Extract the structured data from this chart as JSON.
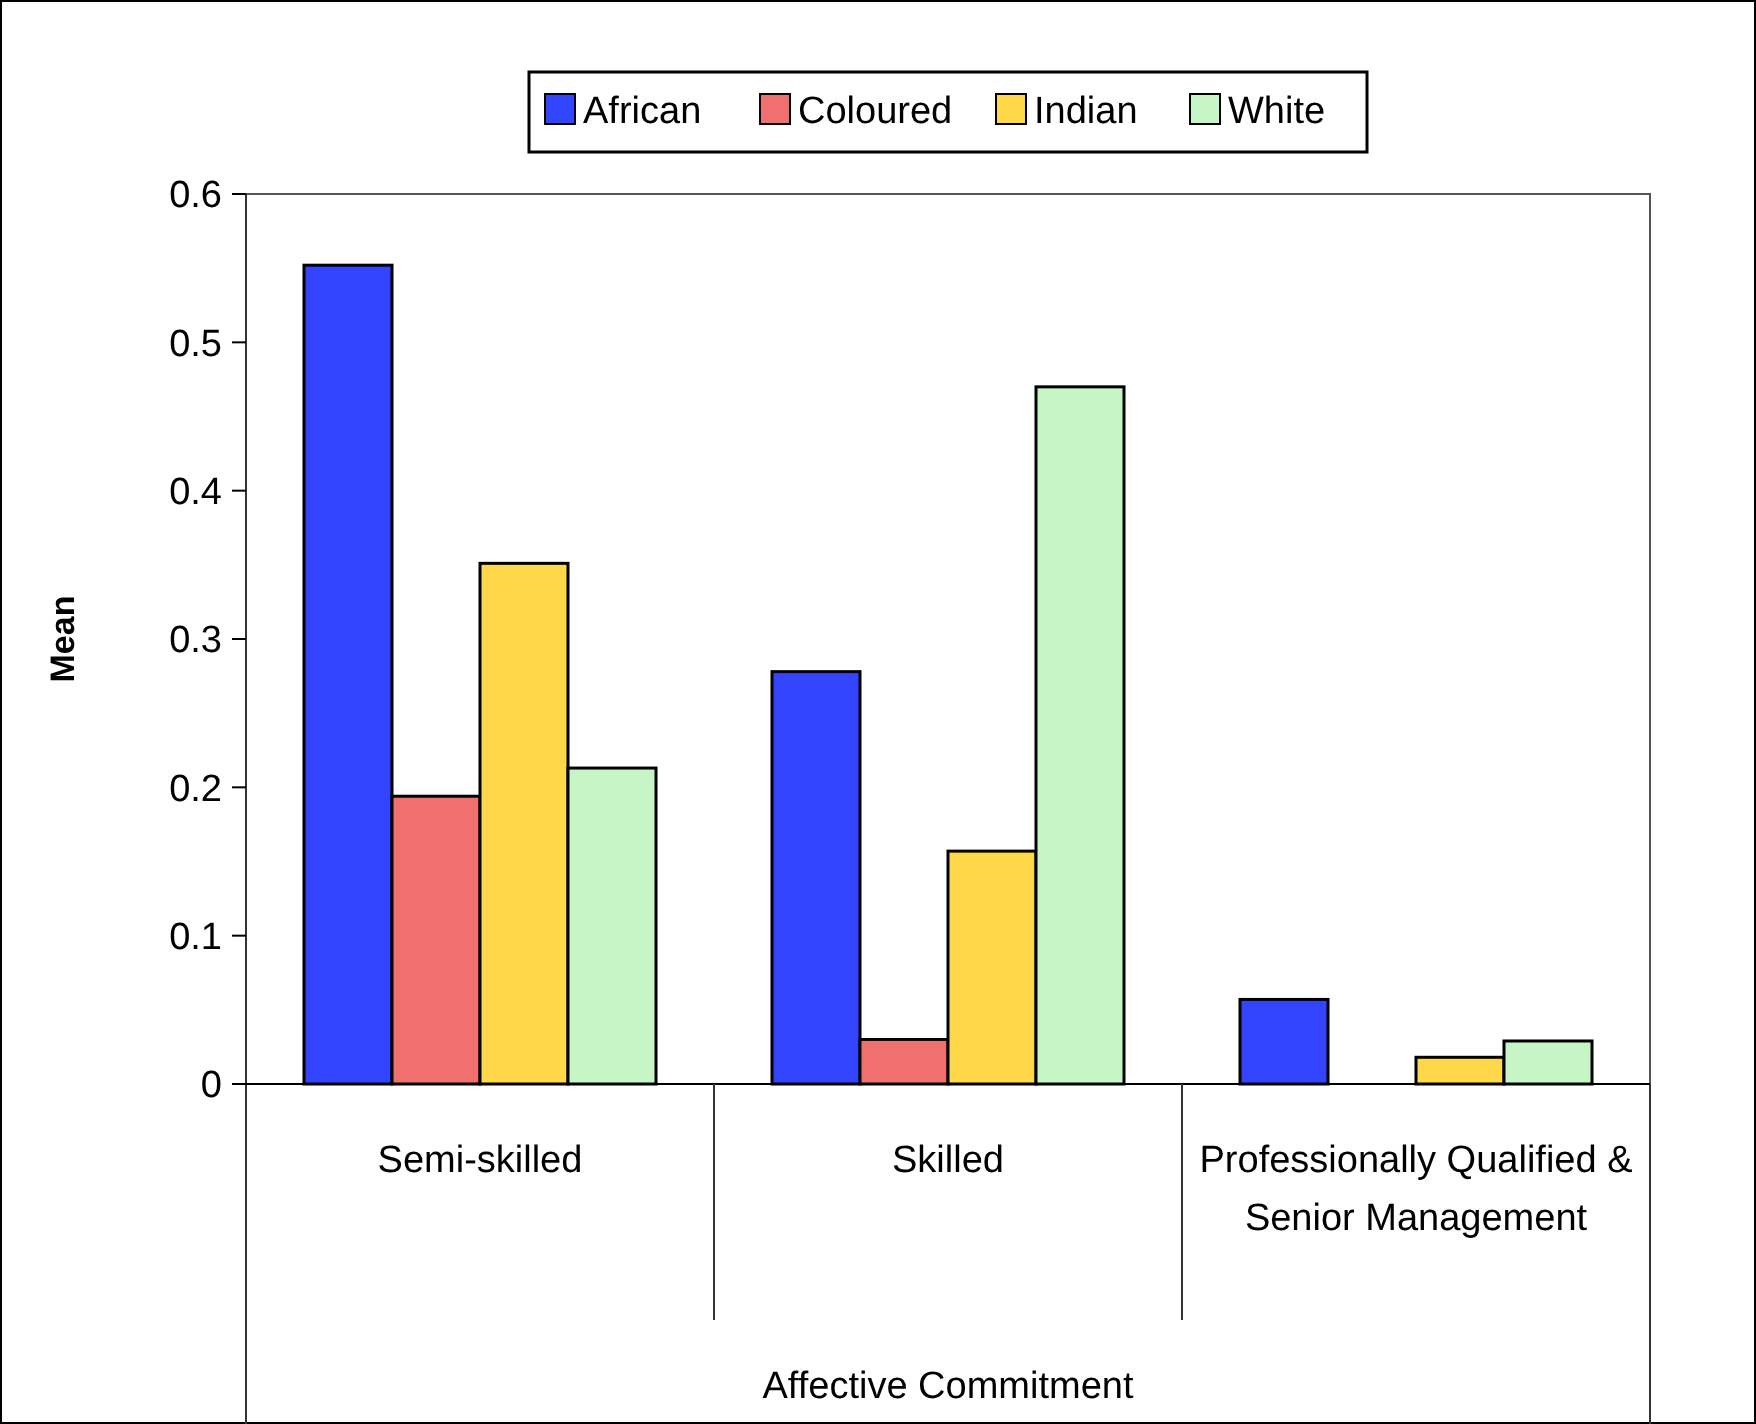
{
  "chart_data": {
    "type": "bar",
    "ylabel": "Mean",
    "xlabel": "Affective Commitment",
    "categories": [
      "Semi-skilled",
      "Skilled",
      "Professionally Qualified & Senior Management"
    ],
    "series": [
      {
        "name": "African",
        "color": "#3344ff",
        "values": [
          0.552,
          0.278,
          0.057
        ]
      },
      {
        "name": "Coloured",
        "color": "#f07070",
        "values": [
          0.194,
          0.03,
          0
        ]
      },
      {
        "name": "Indian",
        "color": "#ffd84a",
        "values": [
          0.351,
          0.157,
          0.018
        ]
      },
      {
        "name": "White",
        "color": "#c6f5c6",
        "values": [
          0.213,
          0.47,
          0.029
        ]
      }
    ],
    "ylim": [
      0,
      0.6
    ],
    "yticks": [
      0,
      0.1,
      0.2,
      0.3,
      0.4,
      0.5,
      0.6
    ],
    "grid": false,
    "legend": "top"
  }
}
